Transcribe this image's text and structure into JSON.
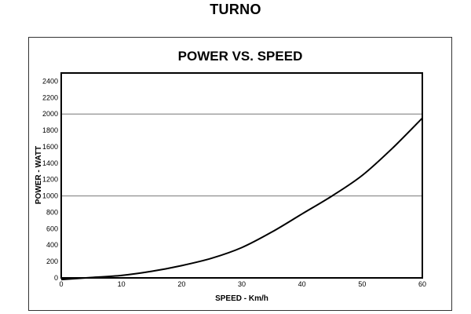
{
  "page": {
    "title": "TURNO"
  },
  "chart_data": {
    "type": "line",
    "title": "POWER VS. SPEED",
    "xlabel": "SPEED - Km/h",
    "ylabel": "POWER - WATT",
    "xlim": [
      0,
      60
    ],
    "ylim": [
      0,
      2500
    ],
    "xticks": [
      0,
      10,
      20,
      30,
      40,
      50,
      60
    ],
    "yticks": [
      0,
      200,
      400,
      600,
      800,
      1000,
      1200,
      1400,
      1600,
      1800,
      2000,
      2200,
      2400
    ],
    "gridlines_y": [
      1000,
      2000
    ],
    "grid": "horizontal at 1000 and 2000",
    "series": [
      {
        "color": "#000000",
        "x": [
          0,
          5,
          10,
          15,
          20,
          25,
          30,
          35,
          40,
          45,
          50,
          55,
          60
        ],
        "y": [
          -20,
          5,
          30,
          80,
          150,
          240,
          370,
          560,
          780,
          1000,
          1250,
          1580,
          1950
        ]
      }
    ]
  }
}
